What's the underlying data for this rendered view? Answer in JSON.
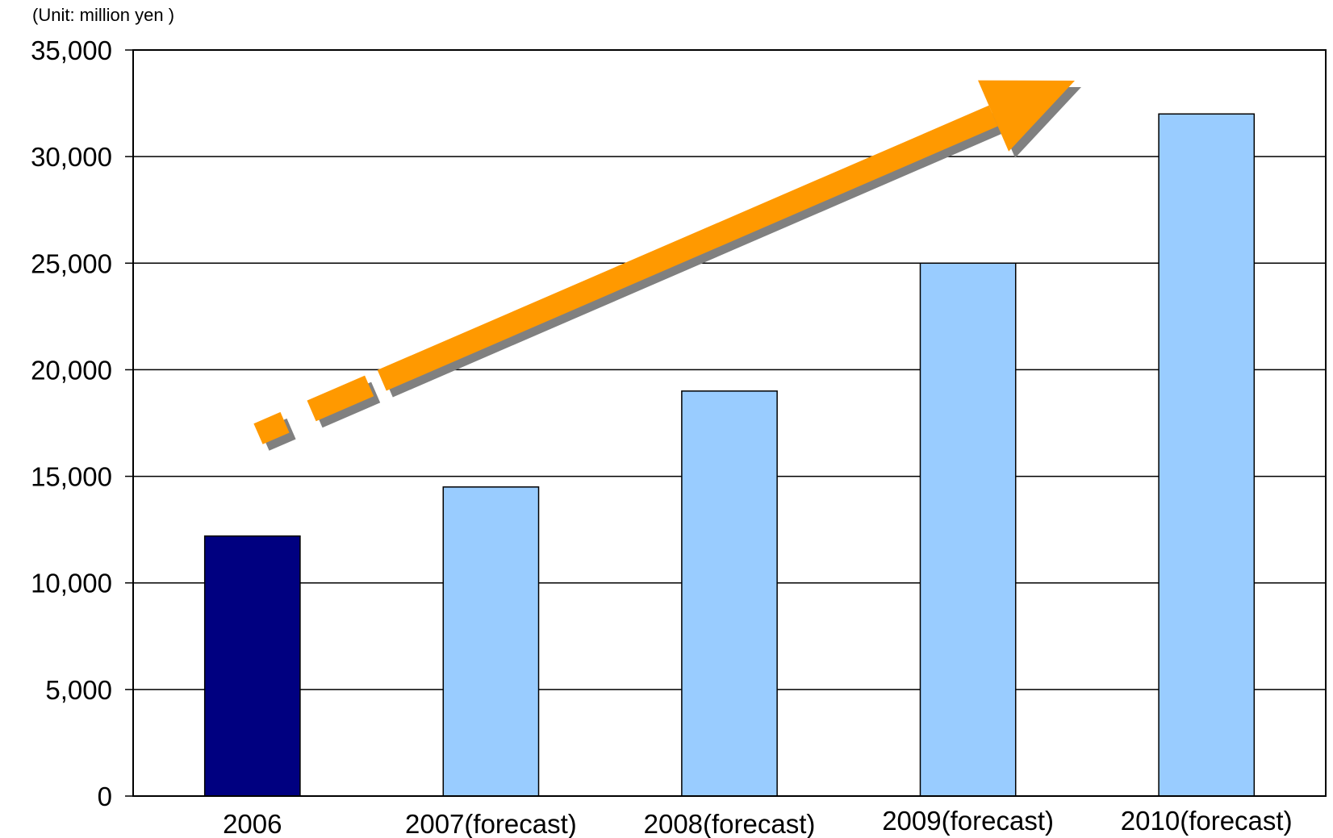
{
  "chart_data": {
    "type": "bar",
    "unit_label": "(Unit: million yen )",
    "categories": [
      "2006",
      "2007(forecast)",
      "2008(forecast)",
      "2009(forecast)",
      "2010(forecast)"
    ],
    "values": [
      12200,
      14500,
      19000,
      25000,
      32000
    ],
    "bar_colors": [
      "#000080",
      "#99ccff",
      "#99ccff",
      "#99ccff",
      "#99ccff"
    ],
    "y_ticks": [
      "0",
      "5,000",
      "10,000",
      "15,000",
      "20,000",
      "25,000",
      "30,000",
      "35,000"
    ],
    "ylim": [
      0,
      35000
    ],
    "grid": true,
    "trend_arrow": {
      "color": "#ff9900",
      "shadow_color": "#808080"
    }
  }
}
